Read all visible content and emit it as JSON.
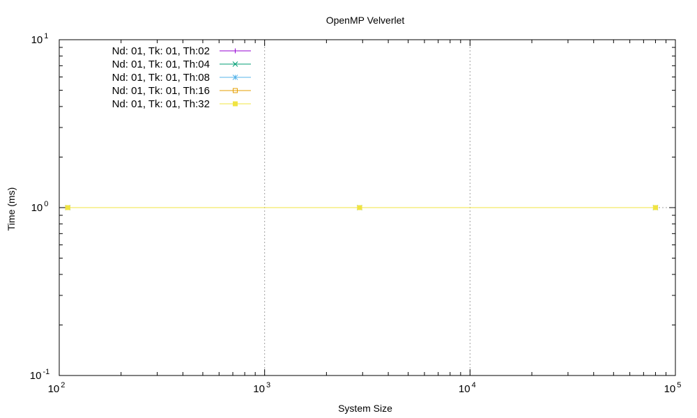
{
  "chart_data": {
    "type": "line",
    "title": "OpenMP Velverlet",
    "xlabel": "System Size",
    "ylabel": "Time (ms)",
    "xscale": "log",
    "yscale": "log",
    "xlim": [
      100,
      100000
    ],
    "ylim": [
      0.1,
      10
    ],
    "x_ticks": [
      {
        "value": 100,
        "base": "10",
        "exp": "2"
      },
      {
        "value": 1000,
        "base": "10",
        "exp": "3"
      },
      {
        "value": 10000,
        "base": "10",
        "exp": "4"
      },
      {
        "value": 100000,
        "base": "10",
        "exp": "5"
      }
    ],
    "y_ticks": [
      {
        "value": 0.1,
        "base": "10",
        "exp": "-1"
      },
      {
        "value": 1,
        "base": "10",
        "exp": "0"
      },
      {
        "value": 10,
        "base": "10",
        "exp": "1"
      }
    ],
    "grid": "major x and y, dotted",
    "legend_position": "top-left",
    "series": [
      {
        "name": "Nd: 01, Tk: 01, Th:02",
        "color": "#9400d3",
        "marker": "plus",
        "x": [
          110,
          2900,
          80000
        ],
        "y": [
          1,
          1,
          1
        ]
      },
      {
        "name": "Nd: 01, Tk: 01, Th:04",
        "color": "#009e73",
        "marker": "cross",
        "x": [
          110,
          2900,
          80000
        ],
        "y": [
          1,
          1,
          1
        ]
      },
      {
        "name": "Nd: 01, Tk: 01, Th:08",
        "color": "#56b4e9",
        "marker": "star",
        "x": [
          110,
          2900,
          80000
        ],
        "y": [
          1,
          1,
          1
        ]
      },
      {
        "name": "Nd: 01, Tk: 01, Th:16",
        "color": "#e69f00",
        "marker": "open-square",
        "x": [
          110,
          2900,
          80000
        ],
        "y": [
          1,
          1,
          1
        ]
      },
      {
        "name": "Nd: 01, Tk: 01, Th:32",
        "color": "#f0e442",
        "marker": "filled-square",
        "x": [
          110,
          2900,
          80000
        ],
        "y": [
          1,
          1,
          1
        ]
      }
    ]
  }
}
